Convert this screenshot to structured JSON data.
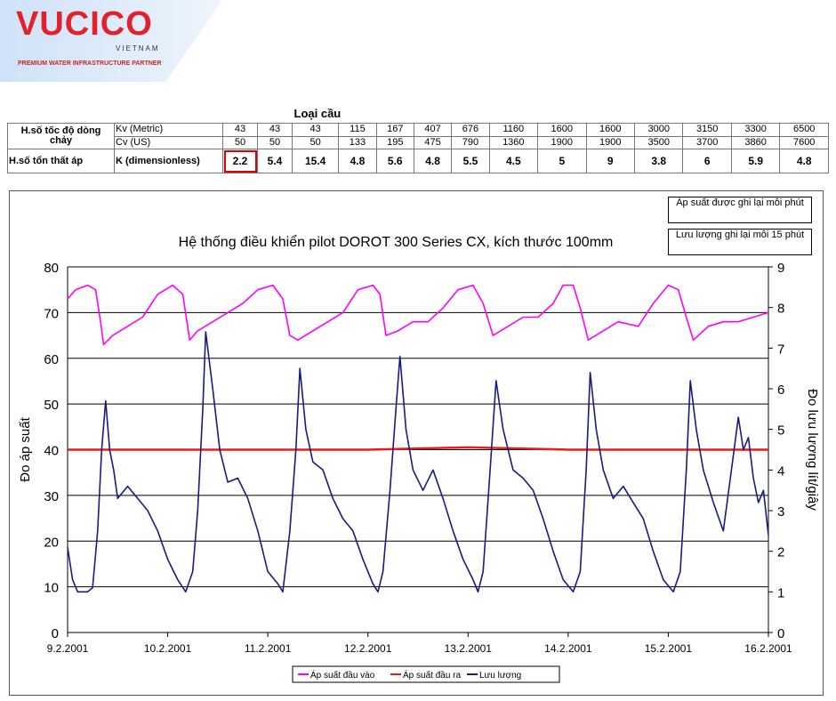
{
  "brand": {
    "name": "VUCICO",
    "sub": "VIETNAM",
    "tagline": "PREMIUM WATER INFRASTRUCTURE PARTNER",
    "accent": "#e3212a",
    "bg": "#cfe2f8"
  },
  "table": {
    "header": "Loại cầu",
    "row1_label": "H.số tốc độ dòng chảy",
    "row1_sub_kv": "Kv (Metric)",
    "row1_sub_cv": "Cv (US)",
    "kv": [
      "43",
      "43",
      "43",
      "115",
      "167",
      "407",
      "676",
      "1160",
      "1600",
      "1600",
      "3000",
      "3150",
      "3300",
      "6500"
    ],
    "cv": [
      "50",
      "50",
      "50",
      "133",
      "195",
      "475",
      "790",
      "1360",
      "1900",
      "1900",
      "3500",
      "3700",
      "3860",
      "7600"
    ],
    "row2_label": "H.số tổn thất áp",
    "row2_sub": "K (dimensionless)",
    "k": [
      "2.2",
      "5.4",
      "15.4",
      "4.8",
      "5.6",
      "4.8",
      "5.5",
      "4.5",
      "5",
      "9",
      "3.8",
      "6",
      "5.9",
      "4.8"
    ]
  },
  "notes": {
    "pressure_note": "Áp suất được ghi lại mỗi phút",
    "flow_note": "Lưu lượng ghi lại mỗi 15 phút"
  },
  "chart_data": {
    "type": "line",
    "title": "Hệ thống điều khiển pilot DOROT 300 Series CX, kích thước 100mm",
    "ylabel": "Đo áp suất",
    "y2label": "Đo lưu lượng lít/giây",
    "ylim": [
      0,
      80
    ],
    "y2lim": [
      0,
      9
    ],
    "yticks": [
      "0",
      "10",
      "20",
      "30",
      "40",
      "50",
      "60",
      "70",
      "80"
    ],
    "y2ticks": [
      "0",
      "1",
      "2",
      "3",
      "4",
      "5",
      "6",
      "7",
      "8",
      "9"
    ],
    "x": [
      "9.2.2001",
      "10.2.2001",
      "11.2.2001",
      "12.2.2001",
      "13.2.2001",
      "14.2.2001",
      "15.2.2001",
      "16.2.2001"
    ],
    "grid": true,
    "legend_position": "bottom",
    "series": [
      {
        "name": "Áp suất đầu vào",
        "axis": "left",
        "color": "#ff00ff",
        "values": [
          [
            0.0,
            73
          ],
          [
            0.08,
            75
          ],
          [
            0.2,
            76
          ],
          [
            0.28,
            75
          ],
          [
            0.33,
            68
          ],
          [
            0.36,
            63
          ],
          [
            0.45,
            65
          ],
          [
            0.6,
            67
          ],
          [
            0.75,
            69
          ],
          [
            0.9,
            74
          ],
          [
            1.05,
            76
          ],
          [
            1.15,
            74
          ],
          [
            1.22,
            64
          ],
          [
            1.3,
            66
          ],
          [
            1.45,
            68
          ],
          [
            1.6,
            70
          ],
          [
            1.75,
            72
          ],
          [
            1.9,
            75
          ],
          [
            2.05,
            76
          ],
          [
            2.15,
            73
          ],
          [
            2.22,
            65
          ],
          [
            2.3,
            64
          ],
          [
            2.45,
            66
          ],
          [
            2.6,
            68
          ],
          [
            2.75,
            70
          ],
          [
            2.9,
            75
          ],
          [
            3.05,
            76
          ],
          [
            3.12,
            74
          ],
          [
            3.18,
            65
          ],
          [
            3.3,
            66
          ],
          [
            3.45,
            68
          ],
          [
            3.6,
            68
          ],
          [
            3.75,
            71
          ],
          [
            3.9,
            75
          ],
          [
            4.05,
            76
          ],
          [
            4.15,
            72
          ],
          [
            4.25,
            65
          ],
          [
            4.4,
            67
          ],
          [
            4.55,
            69
          ],
          [
            4.7,
            69
          ],
          [
            4.85,
            72
          ],
          [
            4.95,
            76
          ],
          [
            5.05,
            76
          ],
          [
            5.12,
            71
          ],
          [
            5.2,
            64
          ],
          [
            5.35,
            66
          ],
          [
            5.5,
            68
          ],
          [
            5.7,
            67
          ],
          [
            5.85,
            72
          ],
          [
            6.0,
            76
          ],
          [
            6.1,
            75
          ],
          [
            6.18,
            69
          ],
          [
            6.25,
            64
          ],
          [
            6.4,
            67
          ],
          [
            6.55,
            68
          ],
          [
            6.7,
            68
          ],
          [
            6.85,
            69
          ],
          [
            7.0,
            70
          ]
        ]
      },
      {
        "name": "Áp suất đầu ra",
        "axis": "left",
        "color": "#e81c1c",
        "values": [
          [
            0.0,
            40
          ],
          [
            1.0,
            40
          ],
          [
            2.0,
            40
          ],
          [
            3.0,
            40
          ],
          [
            4.0,
            40.5
          ],
          [
            5.0,
            40
          ],
          [
            6.0,
            40
          ],
          [
            7.0,
            40
          ]
        ]
      },
      {
        "name": "Lưu lượng",
        "axis": "right",
        "color": "#1a1a80",
        "values": [
          [
            0.0,
            2.1
          ],
          [
            0.05,
            1.3
          ],
          [
            0.1,
            1.0
          ],
          [
            0.2,
            1.0
          ],
          [
            0.25,
            1.1
          ],
          [
            0.3,
            2.5
          ],
          [
            0.34,
            4.5
          ],
          [
            0.38,
            5.7
          ],
          [
            0.42,
            4.5
          ],
          [
            0.46,
            4.0
          ],
          [
            0.5,
            3.3
          ],
          [
            0.6,
            3.6
          ],
          [
            0.7,
            3.3
          ],
          [
            0.8,
            3.0
          ],
          [
            0.9,
            2.5
          ],
          [
            1.0,
            1.8
          ],
          [
            1.1,
            1.3
          ],
          [
            1.18,
            1.0
          ],
          [
            1.25,
            1.5
          ],
          [
            1.3,
            3.0
          ],
          [
            1.35,
            5.5
          ],
          [
            1.38,
            7.4
          ],
          [
            1.45,
            6.0
          ],
          [
            1.52,
            4.5
          ],
          [
            1.6,
            3.7
          ],
          [
            1.7,
            3.8
          ],
          [
            1.8,
            3.3
          ],
          [
            1.9,
            2.5
          ],
          [
            2.0,
            1.5
          ],
          [
            2.1,
            1.2
          ],
          [
            2.15,
            1.0
          ],
          [
            2.22,
            2.5
          ],
          [
            2.28,
            4.5
          ],
          [
            2.32,
            6.5
          ],
          [
            2.38,
            5.0
          ],
          [
            2.45,
            4.2
          ],
          [
            2.55,
            4.0
          ],
          [
            2.65,
            3.3
          ],
          [
            2.75,
            2.8
          ],
          [
            2.85,
            2.5
          ],
          [
            2.95,
            1.8
          ],
          [
            3.05,
            1.2
          ],
          [
            3.1,
            1.0
          ],
          [
            3.15,
            1.5
          ],
          [
            3.22,
            3.5
          ],
          [
            3.28,
            5.5
          ],
          [
            3.32,
            6.8
          ],
          [
            3.38,
            5.0
          ],
          [
            3.45,
            4.0
          ],
          [
            3.55,
            3.5
          ],
          [
            3.65,
            4.0
          ],
          [
            3.75,
            3.3
          ],
          [
            3.85,
            2.5
          ],
          [
            3.95,
            1.8
          ],
          [
            4.05,
            1.3
          ],
          [
            4.1,
            1.0
          ],
          [
            4.15,
            1.5
          ],
          [
            4.22,
            4.0
          ],
          [
            4.28,
            6.2
          ],
          [
            4.35,
            5.0
          ],
          [
            4.45,
            4.0
          ],
          [
            4.55,
            3.8
          ],
          [
            4.65,
            3.5
          ],
          [
            4.75,
            2.8
          ],
          [
            4.85,
            2.0
          ],
          [
            4.95,
            1.3
          ],
          [
            5.05,
            1.0
          ],
          [
            5.12,
            1.5
          ],
          [
            5.18,
            4.0
          ],
          [
            5.22,
            6.4
          ],
          [
            5.28,
            5.0
          ],
          [
            5.35,
            4.0
          ],
          [
            5.45,
            3.3
          ],
          [
            5.55,
            3.6
          ],
          [
            5.65,
            3.2
          ],
          [
            5.75,
            2.8
          ],
          [
            5.85,
            2.0
          ],
          [
            5.95,
            1.3
          ],
          [
            6.05,
            1.0
          ],
          [
            6.12,
            1.5
          ],
          [
            6.18,
            4.0
          ],
          [
            6.22,
            6.2
          ],
          [
            6.28,
            5.0
          ],
          [
            6.35,
            4.0
          ],
          [
            6.45,
            3.2
          ],
          [
            6.55,
            2.5
          ],
          [
            6.62,
            3.8
          ],
          [
            6.7,
            5.3
          ],
          [
            6.75,
            4.5
          ],
          [
            6.8,
            4.8
          ],
          [
            6.85,
            3.8
          ],
          [
            6.9,
            3.2
          ],
          [
            6.95,
            3.5
          ],
          [
            7.0,
            2.4
          ]
        ]
      }
    ]
  }
}
